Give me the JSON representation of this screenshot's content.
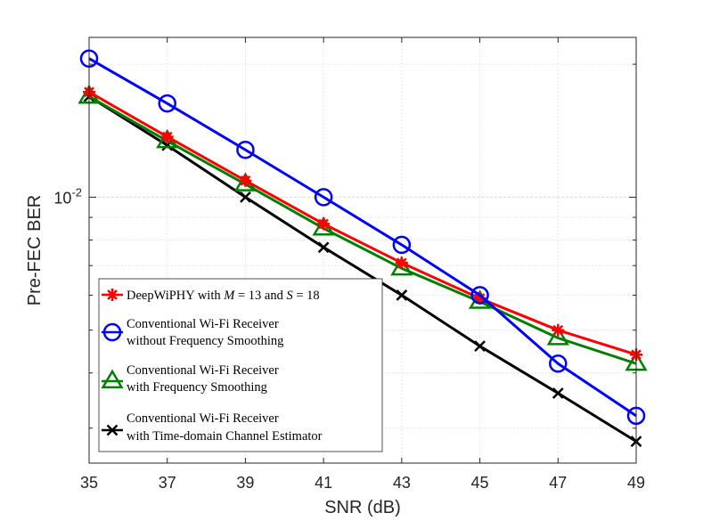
{
  "chart_data": {
    "type": "line",
    "title": "",
    "xlabel": "SNR (dB)",
    "ylabel": "Pre-FEC BER",
    "yscale": "log",
    "xlim": [
      35,
      49
    ],
    "ylim": [
      0.0025,
      0.023
    ],
    "x": [
      35,
      37,
      39,
      41,
      43,
      45,
      47,
      49
    ],
    "x_tick_labels": [
      "35",
      "37",
      "39",
      "41",
      "43",
      "45",
      "47",
      "49"
    ],
    "y_major_ticks": [
      {
        "value": 0.01,
        "base": "10",
        "exponent": "-2"
      }
    ],
    "y_minor_ticks": [
      0.003,
      0.004,
      0.005,
      0.006,
      0.007,
      0.008,
      0.009,
      0.02
    ],
    "grid": true,
    "legend_position": "lower-left",
    "series": [
      {
        "name": "DeepWiPHY with M = 13 and S = 18",
        "legend_parts": [
          "DeepWiPHY with ",
          "M",
          " = 13 and ",
          "S",
          " = 18"
        ],
        "color": "#ff0000",
        "marker": "asterisk",
        "values": [
          0.0173,
          0.0137,
          0.0109,
          0.0087,
          0.0071,
          0.0059,
          0.005,
          0.0044
        ]
      },
      {
        "name": "Conventional Wi-Fi Receiver without Frequency Smoothing",
        "legend_lines": [
          "Conventional Wi-Fi Receiver",
          "without Frequency Smoothing"
        ],
        "color": "#0000ff",
        "marker": "circle",
        "values": [
          0.0206,
          0.0163,
          0.0128,
          0.01,
          0.0078,
          0.006,
          0.0042,
          0.0032
        ]
      },
      {
        "name": "Conventional Wi-Fi Receiver with Frequency Smoothing",
        "legend_lines": [
          "Conventional Wi-Fi Receiver",
          "with Frequency Smoothing"
        ],
        "color": "#008000",
        "marker": "triangle",
        "values": [
          0.0169,
          0.0134,
          0.0107,
          0.0085,
          0.0069,
          0.0058,
          0.0048,
          0.0042
        ]
      },
      {
        "name": "Conventional Wi-Fi Receiver with Time-domain Channel Estimator",
        "legend_lines": [
          "Conventional Wi-Fi Receiver",
          "with Time-domain Channel Estimator"
        ],
        "color": "#000000",
        "marker": "x",
        "values": [
          0.0169,
          0.0131,
          0.01,
          0.0077,
          0.006,
          0.0046,
          0.0036,
          0.0028
        ]
      }
    ]
  }
}
